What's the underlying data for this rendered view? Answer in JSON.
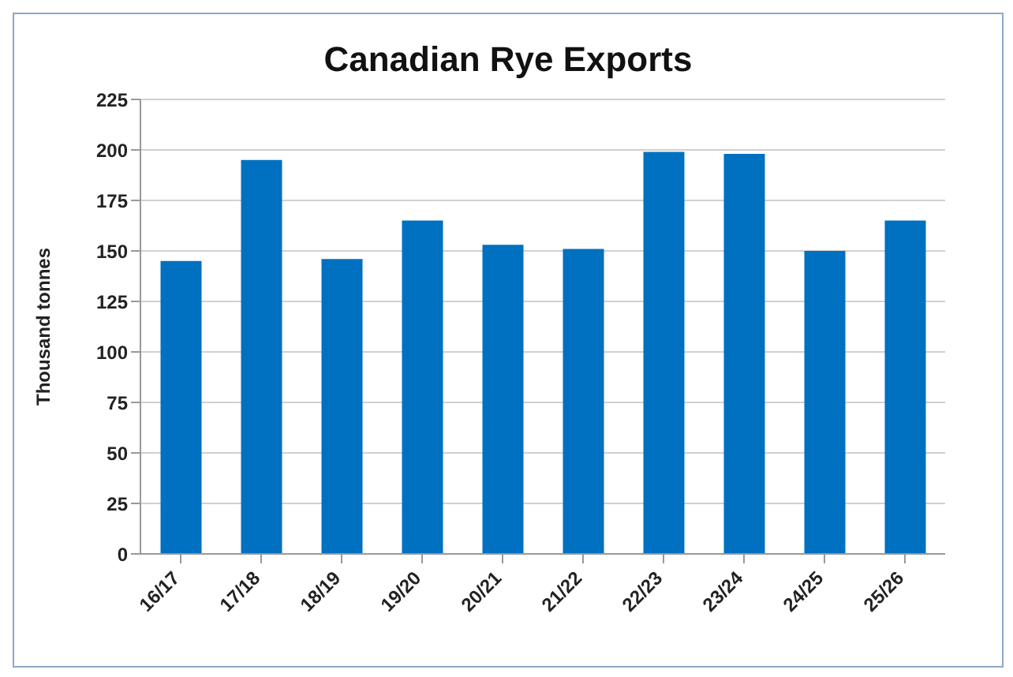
{
  "chart_data": {
    "type": "bar",
    "title": "Canadian Rye Exports",
    "ylabel": "Thousand tonnes",
    "categories": [
      "16/17",
      "17/18",
      "18/19",
      "19/20",
      "20/21",
      "21/22",
      "22/23",
      "23/24",
      "24/25",
      "25/26"
    ],
    "values": [
      145,
      195,
      146,
      165,
      153,
      151,
      199,
      198,
      150,
      165
    ],
    "color": "#0070c0",
    "ylim": [
      0,
      225
    ],
    "yticks": [
      0,
      25,
      50,
      75,
      100,
      125,
      150,
      175,
      200,
      225
    ],
    "grid": "y"
  }
}
